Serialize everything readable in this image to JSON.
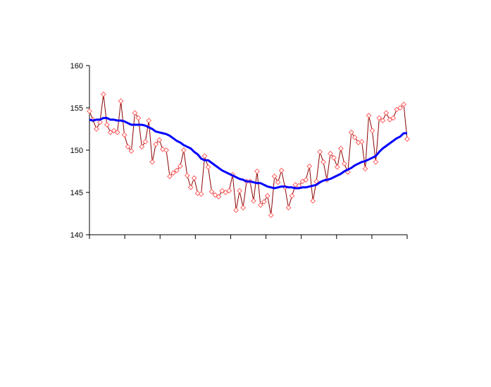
{
  "chart_data": {
    "type": "line",
    "title": "",
    "xlabel": "",
    "ylabel": "",
    "ylim": [
      140,
      160
    ],
    "yticks": [
      140,
      145,
      150,
      155,
      160
    ],
    "x_tick_count": 10,
    "grid": false,
    "legend": "none",
    "series": [
      {
        "style": "line-with-diamond-markers",
        "line_color": "#8B0000",
        "marker_color": "#FF6060",
        "values": [
          154.6,
          153.6,
          152.5,
          153.3,
          156.6,
          153.0,
          152.1,
          152.3,
          152.1,
          155.8,
          151.8,
          150.4,
          149.9,
          154.4,
          153.8,
          150.4,
          151.0,
          153.5,
          148.6,
          150.7,
          151.2,
          150.1,
          150.0,
          146.9,
          147.3,
          147.6,
          148.1,
          150.0,
          147.0,
          145.6,
          146.7,
          144.9,
          144.8,
          149.3,
          148.0,
          145.1,
          144.7,
          144.5,
          145.2,
          145.0,
          145.2,
          147.1,
          142.9,
          145.2,
          143.2,
          146.3,
          146.3,
          144.0,
          147.5,
          143.5,
          143.9,
          144.6,
          142.3,
          146.9,
          146.2,
          147.6,
          145.6,
          143.2,
          144.6,
          145.9,
          145.8,
          146.3,
          146.5,
          148.1,
          144.0,
          146.3,
          149.8,
          148.6,
          146.5,
          149.6,
          149.1,
          148.0,
          150.2,
          148.4,
          147.4,
          152.1,
          151.5,
          150.9,
          151.0,
          147.8,
          154.1,
          152.3,
          148.6,
          153.8,
          153.5,
          154.4,
          153.6,
          153.8,
          154.8,
          155.0,
          155.4,
          151.3
        ]
      },
      {
        "style": "line",
        "line_color": "#0000FF",
        "values": [
          153.6,
          153.5,
          153.6,
          153.6,
          153.8,
          153.8,
          153.6,
          153.6,
          153.5,
          153.5,
          153.4,
          153.2,
          153.0,
          153.0,
          153.0,
          153.0,
          152.9,
          152.7,
          152.5,
          152.2,
          152.1,
          152.0,
          151.9,
          151.7,
          151.4,
          151.1,
          150.9,
          150.6,
          150.4,
          150.2,
          149.8,
          149.5,
          149.0,
          148.8,
          148.8,
          148.5,
          148.2,
          147.9,
          147.6,
          147.4,
          147.2,
          147.0,
          146.8,
          146.6,
          146.5,
          146.3,
          146.3,
          146.2,
          146.1,
          146.1,
          145.9,
          145.7,
          145.6,
          145.5,
          145.6,
          145.7,
          145.7,
          145.6,
          145.6,
          145.5,
          145.5,
          145.6,
          145.6,
          145.7,
          145.8,
          145.9,
          146.2,
          146.4,
          146.5,
          146.6,
          146.8,
          147.0,
          147.2,
          147.5,
          147.7,
          147.9,
          148.2,
          148.4,
          148.6,
          148.7,
          148.9,
          149.1,
          149.3,
          149.8,
          150.2,
          150.5,
          150.8,
          151.1,
          151.4,
          151.6,
          152.0,
          152.0
        ]
      }
    ]
  }
}
